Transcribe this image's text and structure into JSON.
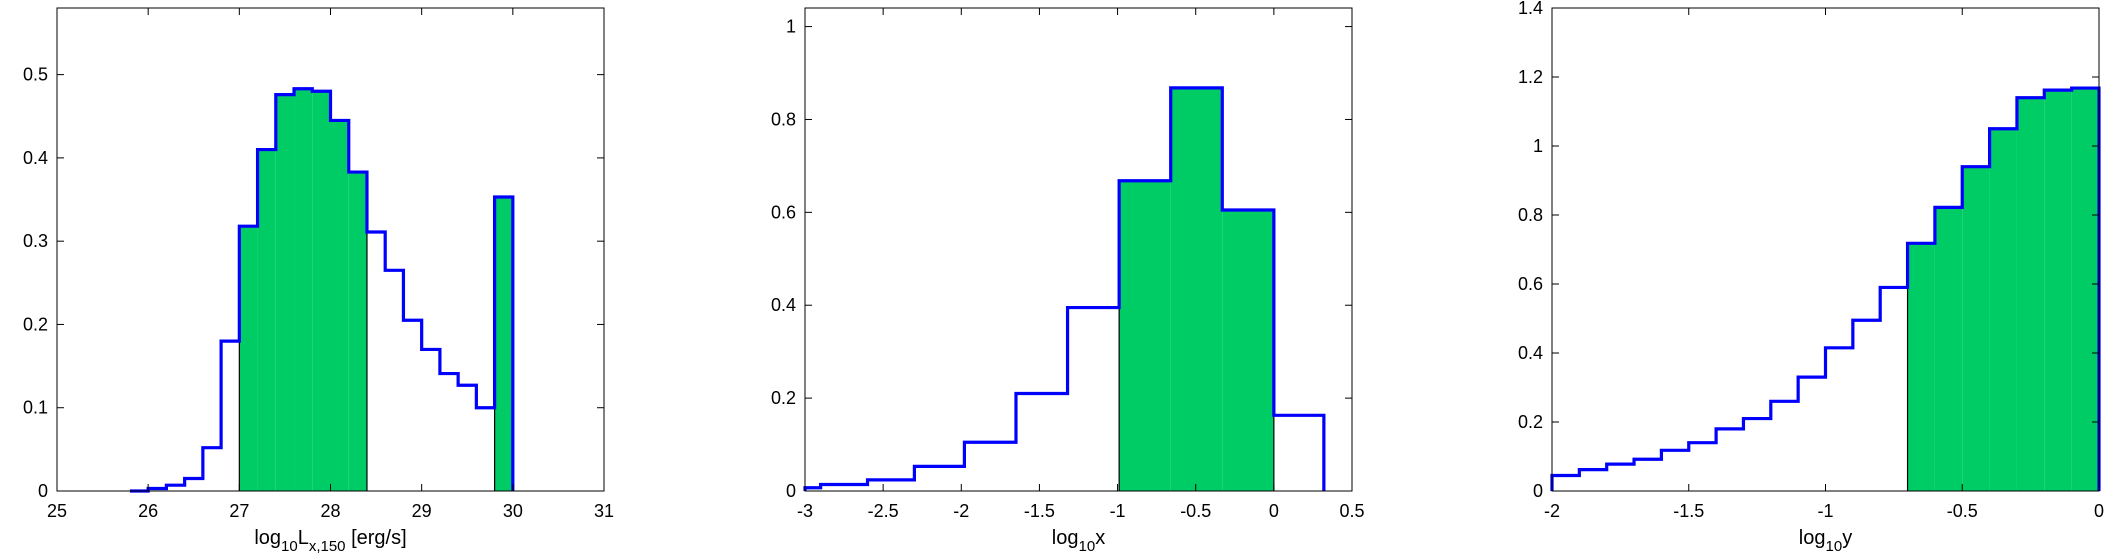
{
  "chart_data": [
    {
      "type": "histogram",
      "xlabel": {
        "prefix": "log",
        "sub1": "10",
        "mid": "L",
        "sub2": "x,150",
        "suffix": " [erg/s]"
      },
      "xlim": [
        25,
        31
      ],
      "ylim": [
        0,
        0.58
      ],
      "xticks": [
        25,
        26,
        27,
        28,
        29,
        30,
        31
      ],
      "yticks": [
        0,
        0.1,
        0.2,
        0.3,
        0.4,
        0.5
      ],
      "xtick_labels": [
        "25",
        "26",
        "27",
        "28",
        "29",
        "30",
        "31"
      ],
      "ytick_labels": [
        "0",
        "0.1",
        "0.2",
        "0.3",
        "0.4",
        "0.5"
      ],
      "edges": [
        25.8,
        26.0,
        26.2,
        26.4,
        26.6,
        26.8,
        27.0,
        27.2,
        27.4,
        27.6,
        27.8,
        28.0,
        28.2,
        28.4,
        28.6,
        28.8,
        29.0,
        29.2,
        29.4,
        29.6,
        29.8,
        30.0
      ],
      "values": [
        0.0,
        0.003,
        0.007,
        0.015,
        0.052,
        0.18,
        0.318,
        0.41,
        0.476,
        0.483,
        0.48,
        0.445,
        0.383,
        0.311,
        0.265,
        0.205,
        0.17,
        0.141,
        0.127,
        0.1,
        0.353
      ],
      "filled_ranges": [
        [
          27.0,
          28.4
        ],
        [
          29.8,
          30.0
        ]
      ],
      "line_color": "#0000ff",
      "fill_color": "#00cc66"
    },
    {
      "type": "histogram",
      "xlabel": {
        "prefix": "log",
        "sub1": "10",
        "mid": "x",
        "sub2": "",
        "suffix": ""
      },
      "xlim": [
        -3,
        0.5
      ],
      "ylim": [
        0,
        1.04
      ],
      "xticks": [
        -3,
        -2.5,
        -2,
        -1.5,
        -1,
        -0.5,
        0,
        0.5
      ],
      "yticks": [
        0,
        0.2,
        0.4,
        0.6,
        0.8,
        1
      ],
      "xtick_labels": [
        "-3",
        "-2.5",
        "-2",
        "-1.5",
        "-1",
        "-0.5",
        "0",
        "0.5"
      ],
      "ytick_labels": [
        "0",
        "0.2",
        "0.4",
        "0.6",
        "0.8",
        "1"
      ],
      "edges": [
        -3.0,
        -2.9,
        -2.6,
        -2.3,
        -1.98,
        -1.65,
        -1.32,
        -0.99,
        -0.66,
        -0.33,
        0.0,
        0.32
      ],
      "values": [
        0.007,
        0.014,
        0.024,
        0.053,
        0.105,
        0.21,
        0.395,
        0.668,
        0.868,
        0.605,
        0.163
      ],
      "filled_ranges": [
        [
          -0.99,
          0.0
        ]
      ],
      "line_color": "#0000ff",
      "fill_color": "#00cc66"
    },
    {
      "type": "histogram",
      "xlabel": {
        "prefix": "log",
        "sub1": "10",
        "mid": "y",
        "sub2": "",
        "suffix": ""
      },
      "xlim": [
        -2,
        0
      ],
      "ylim": [
        0,
        1.4
      ],
      "xticks": [
        -2,
        -1.5,
        -1,
        -0.5,
        0
      ],
      "yticks": [
        0,
        0.2,
        0.4,
        0.6,
        0.8,
        1,
        1.2,
        1.4
      ],
      "xtick_labels": [
        "-2",
        "-1.5",
        "-1",
        "-0.5",
        "0"
      ],
      "ytick_labels": [
        "0",
        "0.2",
        "0.4",
        "0.6",
        "0.8",
        "1",
        "1.2",
        "1.4"
      ],
      "edges": [
        -2.0,
        -1.9,
        -1.8,
        -1.7,
        -1.6,
        -1.5,
        -1.4,
        -1.3,
        -1.2,
        -1.1,
        -1.0,
        -0.9,
        -0.8,
        -0.7,
        -0.6,
        -0.5,
        -0.4,
        -0.3,
        -0.2,
        -0.1,
        0.0
      ],
      "values": [
        0.045,
        0.062,
        0.078,
        0.092,
        0.118,
        0.14,
        0.18,
        0.21,
        0.26,
        0.33,
        0.415,
        0.495,
        0.59,
        0.718,
        0.822,
        0.94,
        1.05,
        1.14,
        1.162,
        1.168
      ],
      "filled_ranges": [
        [
          -0.7,
          0.0
        ]
      ],
      "line_color": "#0000ff",
      "fill_color": "#00cc66"
    }
  ]
}
